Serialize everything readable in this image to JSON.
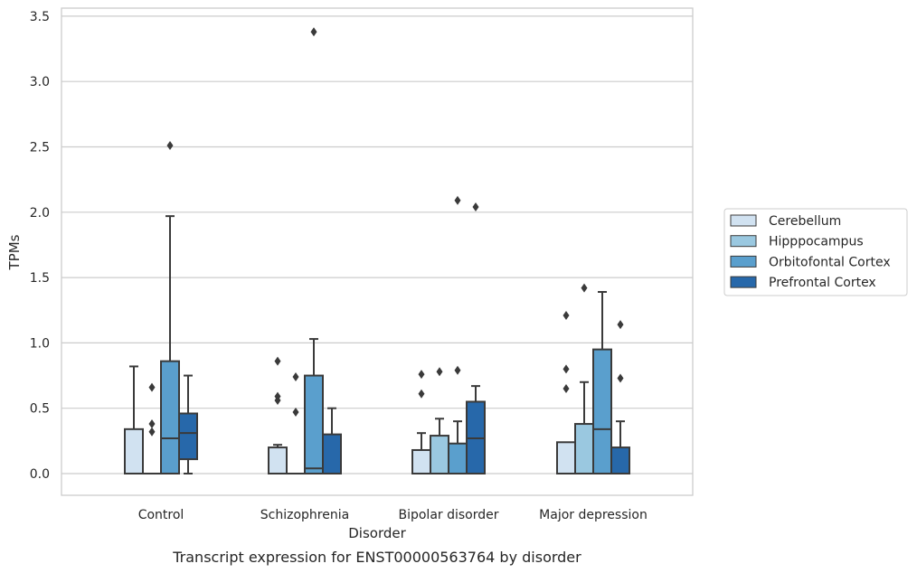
{
  "chart_data": {
    "type": "boxplot",
    "caption": "Transcript expression for ENST00000563764 by disorder",
    "xlabel": "Disorder",
    "ylabel": "TPMs",
    "ylim": [
      -0.17,
      3.56
    ],
    "yticks": [
      0.0,
      0.5,
      1.0,
      1.5,
      2.0,
      2.5,
      3.0,
      3.5
    ],
    "ytick_labels": [
      "0.0",
      "0.5",
      "1.0",
      "1.5",
      "2.0",
      "2.5",
      "3.0",
      "3.5"
    ],
    "grid": "horizontal",
    "legend_position": "right",
    "categories": [
      "Control",
      "Schizophrenia",
      "Bipolar disorder",
      "Major depression"
    ],
    "series": [
      {
        "name": "Cerebellum",
        "color": "#d1e2f1",
        "boxes": [
          {
            "q1": 0.0,
            "median": 0.0,
            "q3": 0.34,
            "whisker_low": 0.0,
            "whisker_high": 0.82,
            "outliers": []
          },
          {
            "q1": 0.0,
            "median": 0.0,
            "q3": 0.2,
            "whisker_low": 0.0,
            "whisker_high": 0.22,
            "outliers": [
              0.86,
              0.59,
              0.56
            ]
          },
          {
            "q1": 0.0,
            "median": 0.0,
            "q3": 0.18,
            "whisker_low": 0.0,
            "whisker_high": 0.31,
            "outliers": [
              0.76,
              0.61
            ]
          },
          {
            "q1": 0.0,
            "median": 0.0,
            "q3": 0.24,
            "whisker_low": 0.0,
            "whisker_high": 0.24,
            "outliers": [
              1.21,
              0.8,
              0.65
            ]
          }
        ]
      },
      {
        "name": "Hipppocampus",
        "color": "#9ac8e0",
        "boxes": [
          {
            "q1": 0.0,
            "median": 0.0,
            "q3": 0.0,
            "whisker_low": 0.0,
            "whisker_high": 0.0,
            "outliers": [
              0.66,
              0.38,
              0.32
            ]
          },
          {
            "q1": 0.0,
            "median": 0.0,
            "q3": 0.0,
            "whisker_low": 0.0,
            "whisker_high": 0.0,
            "outliers": [
              0.74,
              0.47
            ]
          },
          {
            "q1": 0.0,
            "median": 0.0,
            "q3": 0.29,
            "whisker_low": 0.0,
            "whisker_high": 0.42,
            "outliers": [
              0.78
            ]
          },
          {
            "q1": 0.0,
            "median": 0.0,
            "q3": 0.38,
            "whisker_low": 0.0,
            "whisker_high": 0.7,
            "outliers": [
              1.42
            ]
          }
        ]
      },
      {
        "name": "Orbitofontal Cortex",
        "color": "#5a9fcd",
        "boxes": [
          {
            "q1": 0.0,
            "median": 0.27,
            "q3": 0.86,
            "whisker_low": 0.0,
            "whisker_high": 1.97,
            "outliers": [
              2.51
            ]
          },
          {
            "q1": 0.0,
            "median": 0.04,
            "q3": 0.75,
            "whisker_low": 0.0,
            "whisker_high": 1.03,
            "outliers": [
              3.38
            ]
          },
          {
            "q1": 0.0,
            "median": 0.0,
            "q3": 0.23,
            "whisker_low": 0.0,
            "whisker_high": 0.4,
            "outliers": [
              0.79,
              2.09
            ]
          },
          {
            "q1": 0.0,
            "median": 0.34,
            "q3": 0.95,
            "whisker_low": 0.0,
            "whisker_high": 1.39,
            "outliers": []
          }
        ]
      },
      {
        "name": "Prefrontal Cortex",
        "color": "#2768aa",
        "boxes": [
          {
            "q1": 0.11,
            "median": 0.31,
            "q3": 0.46,
            "whisker_low": 0.0,
            "whisker_high": 0.75,
            "outliers": []
          },
          {
            "q1": 0.0,
            "median": 0.0,
            "q3": 0.3,
            "whisker_low": 0.0,
            "whisker_high": 0.5,
            "outliers": []
          },
          {
            "q1": 0.0,
            "median": 0.27,
            "q3": 0.55,
            "whisker_low": 0.0,
            "whisker_high": 0.67,
            "outliers": [
              2.04
            ]
          },
          {
            "q1": 0.0,
            "median": 0.0,
            "q3": 0.2,
            "whisker_low": 0.0,
            "whisker_high": 0.4,
            "outliers": [
              1.14,
              0.73
            ]
          }
        ]
      }
    ]
  }
}
